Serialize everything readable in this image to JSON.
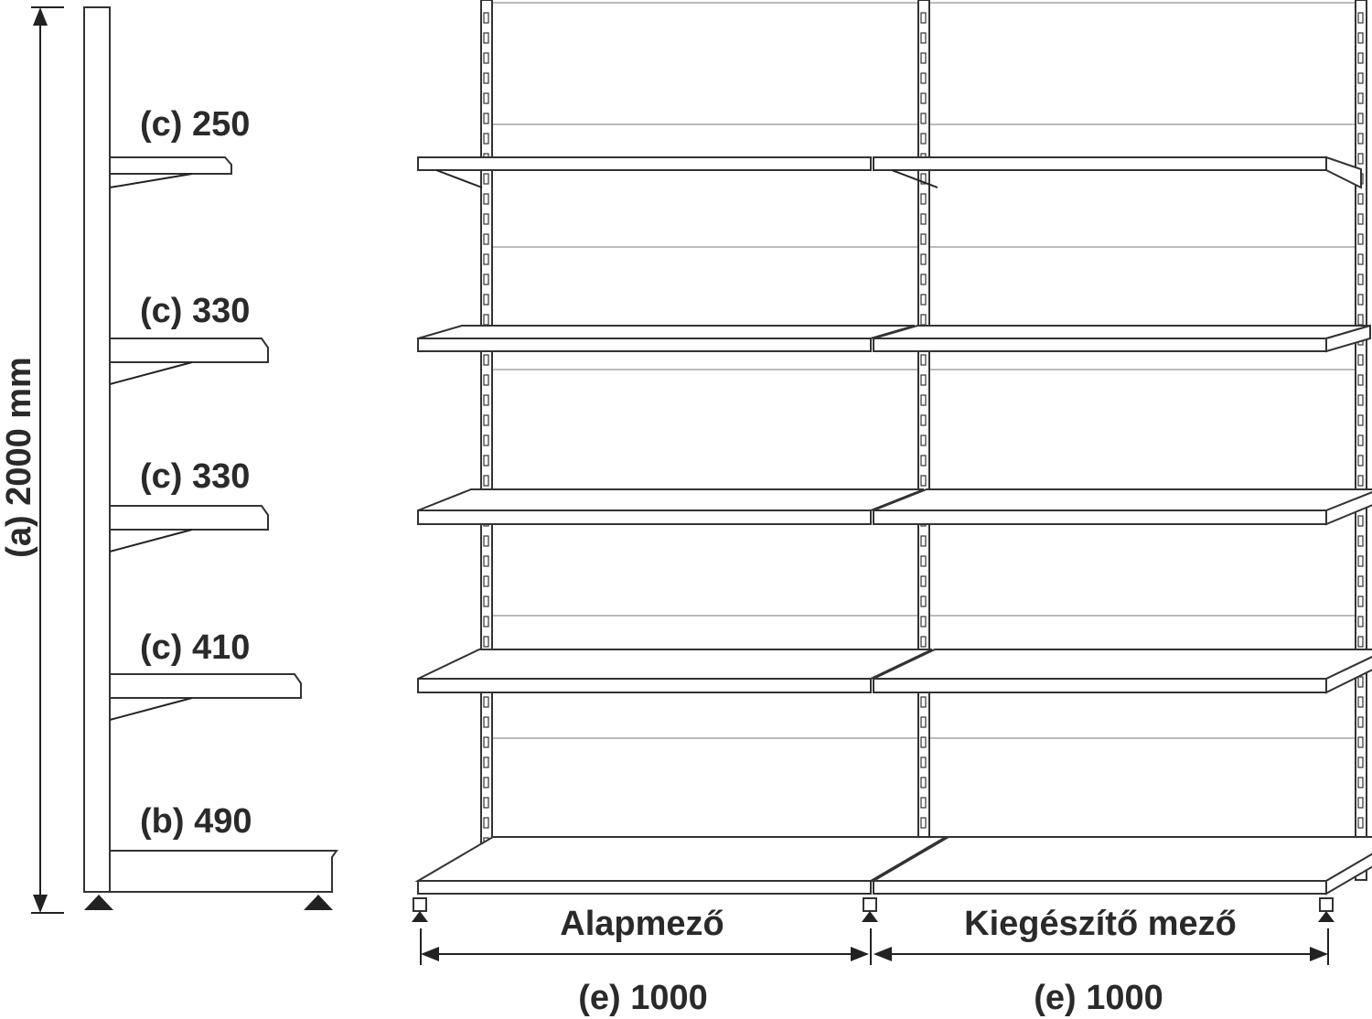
{
  "side_view": {
    "height_label": "(a) 2000 mm",
    "shelves": [
      {
        "label": "(c) 250"
      },
      {
        "label": "(c) 330"
      },
      {
        "label": "(c) 330"
      },
      {
        "label": "(c) 410"
      }
    ],
    "base_label": "(b) 490"
  },
  "front_view": {
    "fields": [
      {
        "name": "Alapmező",
        "width_label": "(e) 1000"
      },
      {
        "name": "Kiegészítő mező",
        "width_label": "(e) 1000"
      }
    ]
  }
}
